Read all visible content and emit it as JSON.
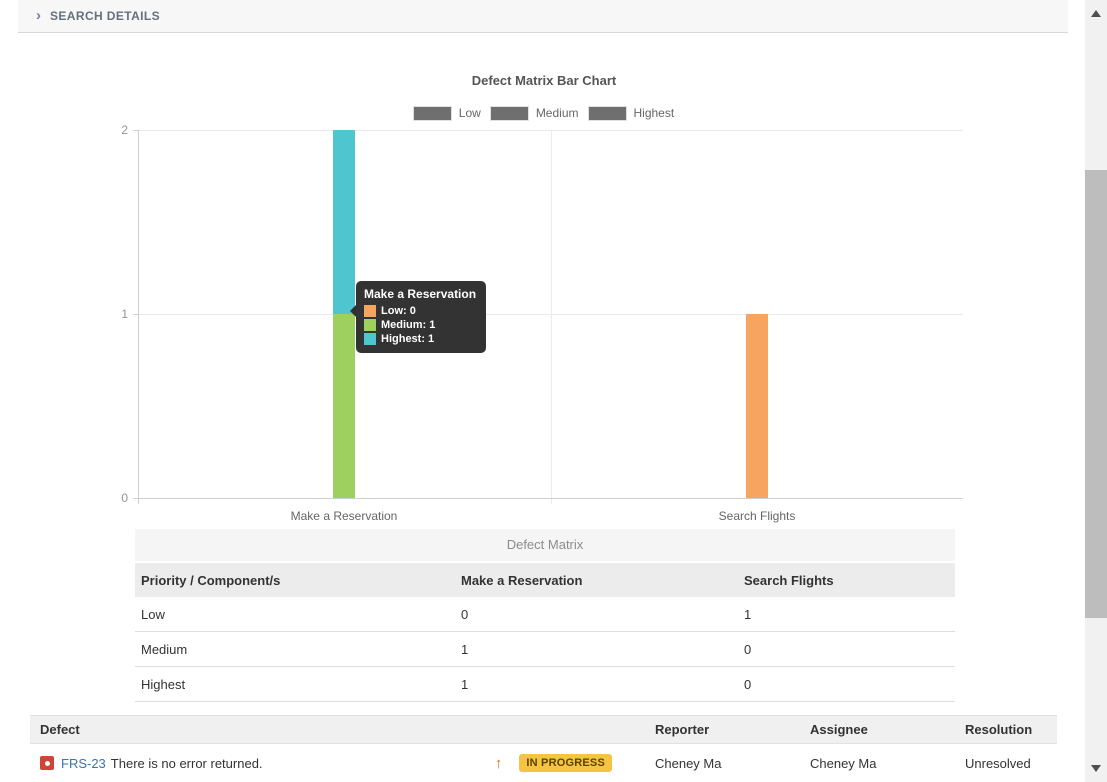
{
  "page": {
    "search_details_label": "SEARCH DETAILS"
  },
  "chart": {
    "title": "Defect Matrix Bar Chart",
    "legend": [
      {
        "label": "Low"
      },
      {
        "label": "Medium"
      },
      {
        "label": "Highest"
      }
    ],
    "y_ticks": [
      "2",
      "1",
      "0"
    ],
    "x_labels": [
      "Make a Reservation",
      "Search Flights"
    ],
    "tooltip": {
      "title": "Make a Reservation",
      "items": [
        {
          "text": "Low: 0"
        },
        {
          "text": "Medium: 1"
        },
        {
          "text": "Highest: 1"
        }
      ]
    }
  },
  "chart_data": {
    "type": "bar",
    "stacked": true,
    "title": "Defect Matrix Bar Chart",
    "categories": [
      "Make a Reservation",
      "Search Flights"
    ],
    "series": [
      {
        "name": "Low",
        "color": "#F5A55F",
        "values": [
          0,
          1
        ]
      },
      {
        "name": "Medium",
        "color": "#9DD05E",
        "values": [
          1,
          0
        ]
      },
      {
        "name": "Highest",
        "color": "#4FC6CF",
        "values": [
          1,
          0
        ]
      }
    ],
    "ylim": [
      0,
      2
    ],
    "y_ticks": [
      0,
      1,
      2
    ],
    "grid": true,
    "legend_position": "top",
    "legend_swatch_color": "#6F6F6F"
  },
  "matrix_table": {
    "caption": "Defect Matrix",
    "headers": [
      "Priority / Component/s",
      "Make a Reservation",
      "Search Flights"
    ],
    "rows": [
      [
        "Low",
        "0",
        "1"
      ],
      [
        "Medium",
        "1",
        "0"
      ],
      [
        "Highest",
        "1",
        "0"
      ]
    ]
  },
  "defect_table": {
    "headers": [
      "Defect",
      "Reporter",
      "Assignee",
      "Resolution"
    ],
    "row": {
      "issue_key": "FRS-23",
      "summary": "There is no error returned.",
      "priority": "↑",
      "status": "IN PROGRESS",
      "reporter": "Cheney Ma",
      "assignee": "Cheney Ma",
      "resolution": "Unresolved"
    }
  },
  "colors": {
    "low": "#F5A55F",
    "medium": "#9DD05E",
    "highest": "#4FC6CF",
    "status_badge_bg": "#F6C342",
    "status_badge_text": "#594300",
    "issue_link": "#3B73AF",
    "bug_icon_bg": "#D04437",
    "priority_arrow": "#E3711C"
  }
}
